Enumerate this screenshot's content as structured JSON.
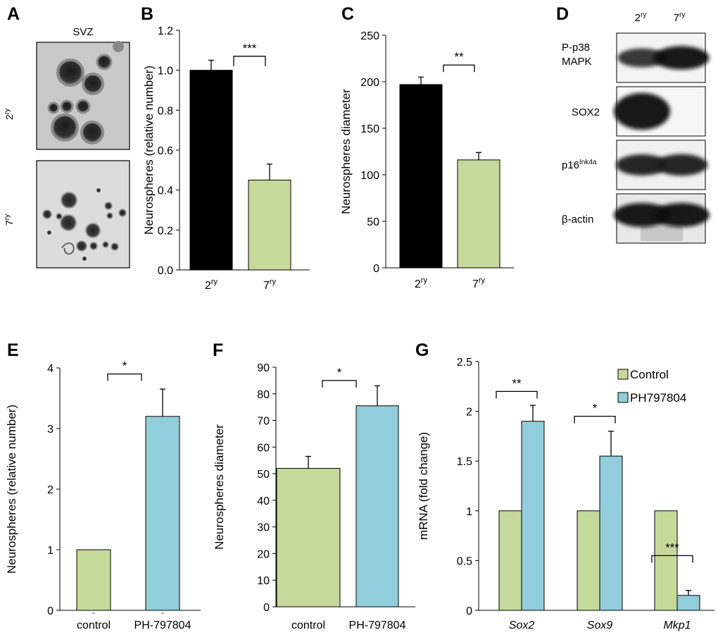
{
  "panel_letters": {
    "A": "A",
    "B": "B",
    "C": "C",
    "D": "D",
    "E": "E",
    "F": "F",
    "G": "G"
  },
  "micrographs": {
    "title": "SVZ",
    "rows": [
      {
        "base": "2",
        "sup": "ry"
      },
      {
        "base": "7",
        "sup": "ry"
      }
    ]
  },
  "western_blot": {
    "lanes": [
      {
        "base": "2",
        "sup": "ry"
      },
      {
        "base": "7",
        "sup": "ry"
      }
    ],
    "bands": [
      {
        "label_lines": [
          "P-p38",
          "MAPK"
        ],
        "label_sup": "",
        "intensity": [
          0.55,
          0.95
        ]
      },
      {
        "label_lines": [
          "SOX2"
        ],
        "label_sup": "",
        "intensity": [
          1.0,
          0.0
        ]
      },
      {
        "label_lines": [
          "p16"
        ],
        "label_sup": "Ink4a",
        "intensity": [
          0.75,
          0.78
        ]
      },
      {
        "label_lines": [
          "β-actin"
        ],
        "label_sup": "",
        "intensity": [
          1.0,
          1.0
        ]
      }
    ]
  },
  "colors": {
    "black": "#000000",
    "green": "#c5d99b",
    "blue": "#92cddc"
  },
  "chart_data": [
    {
      "id": "B",
      "type": "bar",
      "title": "",
      "xlabel": "",
      "ylabel": "Neurospheres (relative number)",
      "categories": [
        {
          "base": "2",
          "sup": "ry"
        },
        {
          "base": "7",
          "sup": "ry"
        }
      ],
      "values": [
        1.0,
        0.45
      ],
      "errors": [
        0.05,
        0.08
      ],
      "colors": [
        "#000000",
        "#c5d99b"
      ],
      "ylim": [
        0,
        1.2
      ],
      "yticks": [
        "0.0",
        "0.2",
        "0.4",
        "0.6",
        "0.8",
        "1.0",
        "1.2"
      ],
      "significance": [
        {
          "from": 0,
          "to": 1,
          "label": "***",
          "y": 1.07
        }
      ]
    },
    {
      "id": "C",
      "type": "bar",
      "title": "",
      "xlabel": "",
      "ylabel": "Neurospheres  diameter",
      "categories": [
        {
          "base": "2",
          "sup": "ry"
        },
        {
          "base": "7",
          "sup": "ry"
        }
      ],
      "values": [
        197,
        116
      ],
      "errors": [
        8,
        8
      ],
      "colors": [
        "#000000",
        "#c5d99b"
      ],
      "ylim": [
        0,
        250
      ],
      "yticks": [
        "0",
        "50",
        "100",
        "150",
        "200",
        "250"
      ],
      "significance": [
        {
          "from": 0,
          "to": 1,
          "label": "**",
          "y": 218
        }
      ]
    },
    {
      "id": "E",
      "type": "bar",
      "title": "",
      "xlabel": "",
      "ylabel": "Neurospheres (relative number)",
      "categories": [
        {
          "base": "control",
          "sup": ""
        },
        {
          "base": "PH-797804",
          "sup": ""
        }
      ],
      "values": [
        1.0,
        3.2
      ],
      "errors": [
        0,
        0.45
      ],
      "colors": [
        "#c5d99b",
        "#92cddc"
      ],
      "ylim": [
        0,
        4
      ],
      "yticks": [
        "0",
        "1",
        "2",
        "3",
        "4"
      ],
      "significance": [
        {
          "from": 0,
          "to": 1,
          "label": "*",
          "y": 3.9
        }
      ]
    },
    {
      "id": "F",
      "type": "bar",
      "title": "",
      "xlabel": "",
      "ylabel": "Neurospheres  diameter",
      "categories": [
        {
          "base": "control",
          "sup": ""
        },
        {
          "base": "PH-797804",
          "sup": ""
        }
      ],
      "values": [
        52,
        75.5
      ],
      "errors": [
        4.5,
        7.5
      ],
      "colors": [
        "#c5d99b",
        "#92cddc"
      ],
      "ylim": [
        0,
        90
      ],
      "yticks": [
        "0",
        "10",
        "20",
        "30",
        "40",
        "50",
        "60",
        "70",
        "80",
        "90"
      ],
      "significance": [
        {
          "from": 0,
          "to": 1,
          "label": "*",
          "y": 85
        }
      ]
    },
    {
      "id": "G",
      "type": "bar",
      "title": "",
      "xlabel": "",
      "ylabel": "mRNA (fold change)",
      "categories": [
        "Sox2",
        "Sox9",
        "Mkp1"
      ],
      "series": [
        {
          "name": "Control",
          "values": [
            1,
            1,
            1
          ],
          "errors": [
            0,
            0,
            0
          ],
          "color": "#c5d99b"
        },
        {
          "name": "PH797804",
          "values": [
            1.9,
            1.55,
            0.15
          ],
          "errors": [
            0.16,
            0.25,
            0.05
          ],
          "color": "#92cddc"
        }
      ],
      "ylim": [
        0,
        2.5
      ],
      "yticks": [
        "0",
        "0.5",
        "1",
        "1.5",
        "2",
        "2.5"
      ],
      "legend_position": "top-right",
      "significance": [
        {
          "category": 0,
          "label": "**",
          "y": 2.2
        },
        {
          "category": 1,
          "label": "*",
          "y": 1.95
        },
        {
          "category": 2,
          "label": "***",
          "y": 0.55
        }
      ]
    }
  ]
}
